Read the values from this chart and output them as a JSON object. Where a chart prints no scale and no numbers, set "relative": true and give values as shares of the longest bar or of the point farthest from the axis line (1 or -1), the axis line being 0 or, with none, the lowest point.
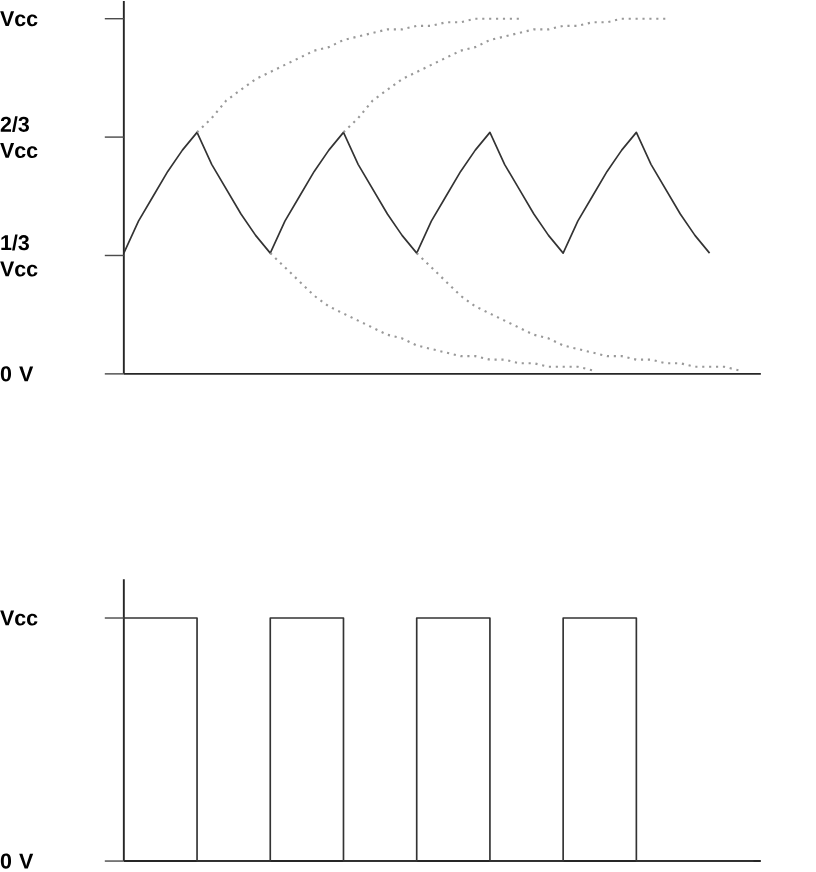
{
  "chart_data": [
    {
      "type": "line",
      "relative": true,
      "categories": [
        null,
        null,
        null,
        null,
        null,
        null,
        null,
        null,
        null,
        null,
        null,
        null,
        null,
        null,
        null,
        null,
        null,
        null,
        null,
        null,
        null,
        null,
        null,
        null,
        null,
        null,
        null,
        null,
        null,
        null,
        null,
        null,
        null,
        null,
        null,
        null,
        null,
        null,
        null,
        null,
        null,
        null,
        null,
        null
      ],
      "tick_labels": false,
      "annotations": [
        "0 V",
        "1/3 Vcc",
        "2/3 Vcc",
        "Vcc"
      ],
      "series": [
        {
          "color": "#333333",
          "line_style": "solid",
          "values": [
            0.34,
            0.43,
            0.5,
            0.57,
            0.63,
            0.68,
            0.59,
            0.52,
            0.45,
            0.39,
            0.34,
            0.43,
            0.5,
            0.57,
            0.63,
            0.68,
            0.59,
            0.52,
            0.45,
            0.39,
            0.34,
            0.43,
            0.5,
            0.57,
            0.63,
            0.68,
            0.59,
            0.52,
            0.45,
            0.39,
            0.34,
            0.43,
            0.5,
            0.57,
            0.63,
            0.68,
            0.59,
            0.52,
            0.45,
            0.39,
            0.34,
            null,
            null,
            null
          ]
        },
        {
          "color": "#999999",
          "line_style": "dotted",
          "values": [
            null,
            null,
            null,
            null,
            null,
            0.68,
            0.72,
            0.77,
            0.8,
            0.83,
            0.85,
            0.87,
            0.89,
            0.91,
            0.92,
            0.94,
            0.95,
            0.96,
            0.97,
            0.97,
            0.98,
            0.98,
            0.99,
            0.99,
            1,
            1,
            1,
            1,
            null,
            null,
            null,
            null,
            null,
            null,
            null,
            null,
            null,
            null,
            null,
            null,
            null,
            null,
            null,
            null
          ]
        },
        {
          "color": "#999999",
          "line_style": "dotted",
          "values": [
            null,
            null,
            null,
            null,
            null,
            null,
            null,
            null,
            null,
            null,
            null,
            null,
            null,
            null,
            null,
            0.68,
            0.72,
            0.77,
            0.8,
            0.83,
            0.85,
            0.87,
            0.89,
            0.91,
            0.92,
            0.94,
            0.95,
            0.96,
            0.97,
            0.97,
            0.98,
            0.98,
            0.99,
            0.99,
            1,
            1,
            1,
            1,
            null,
            null,
            null,
            null,
            null,
            null
          ]
        },
        {
          "color": "#999999",
          "line_style": "dotted",
          "values": [
            null,
            null,
            null,
            null,
            null,
            null,
            null,
            null,
            null,
            null,
            0.34,
            0.3,
            0.26,
            0.22,
            0.19,
            0.17,
            0.15,
            0.13,
            0.11,
            0.1,
            0.08,
            0.07,
            0.06,
            0.05,
            0.05,
            0.04,
            0.04,
            0.03,
            0.03,
            0.02,
            0.02,
            0.02,
            0.01,
            null,
            null,
            null,
            null,
            null,
            null,
            null,
            null,
            null,
            null,
            null
          ]
        },
        {
          "color": "#999999",
          "line_style": "dotted",
          "values": [
            null,
            null,
            null,
            null,
            null,
            null,
            null,
            null,
            null,
            null,
            null,
            null,
            null,
            null,
            null,
            null,
            null,
            null,
            null,
            null,
            0.34,
            0.3,
            0.26,
            0.22,
            0.19,
            0.17,
            0.15,
            0.13,
            0.11,
            0.1,
            0.08,
            0.07,
            0.06,
            0.05,
            0.05,
            0.04,
            0.04,
            0.03,
            0.03,
            0.02,
            0.02,
            0.02,
            0.01,
            null
          ]
        }
      ]
    },
    {
      "type": "step",
      "relative": true,
      "categories": [
        null,
        null,
        null,
        null,
        null,
        null,
        null,
        null,
        null,
        null,
        null,
        null,
        null,
        null,
        null,
        null,
        null,
        null,
        null,
        null,
        null,
        null,
        null,
        null,
        null,
        null,
        null,
        null,
        null,
        null,
        null,
        null,
        null,
        null,
        null,
        null,
        null,
        null,
        null,
        null,
        null,
        null,
        null,
        null
      ],
      "tick_labels": false,
      "annotations": [
        "0 V",
        "Vcc"
      ],
      "series": [
        {
          "color": "#333333",
          "line_style": "solid",
          "values": [
            1,
            1,
            1,
            1,
            1,
            0,
            0,
            0,
            0,
            0,
            1,
            1,
            1,
            1,
            1,
            0,
            0,
            0,
            0,
            0,
            1,
            1,
            1,
            1,
            1,
            0,
            0,
            0,
            0,
            0,
            1,
            1,
            1,
            1,
            1,
            0,
            0,
            0,
            0,
            0,
            0,
            0,
            0,
            0
          ]
        }
      ]
    }
  ]
}
